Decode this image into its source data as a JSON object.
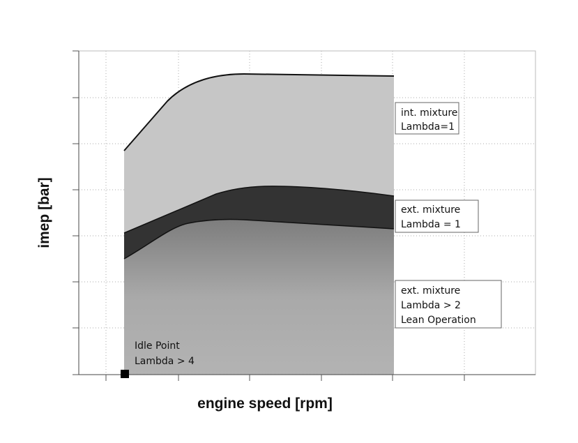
{
  "axes": {
    "y_label": "imep [bar]",
    "x_label": "engine speed [rpm]"
  },
  "annotations": [
    {
      "lines": [
        "int. mixture",
        "Lambda=1"
      ]
    },
    {
      "lines": [
        "ext. mixture",
        "Lambda = 1"
      ]
    },
    {
      "lines": [
        "ext. mixture",
        "Lambda > 2",
        "Lean Operation"
      ]
    },
    {
      "lines": [
        "Idle Point",
        "Lambda > 4"
      ]
    }
  ]
}
